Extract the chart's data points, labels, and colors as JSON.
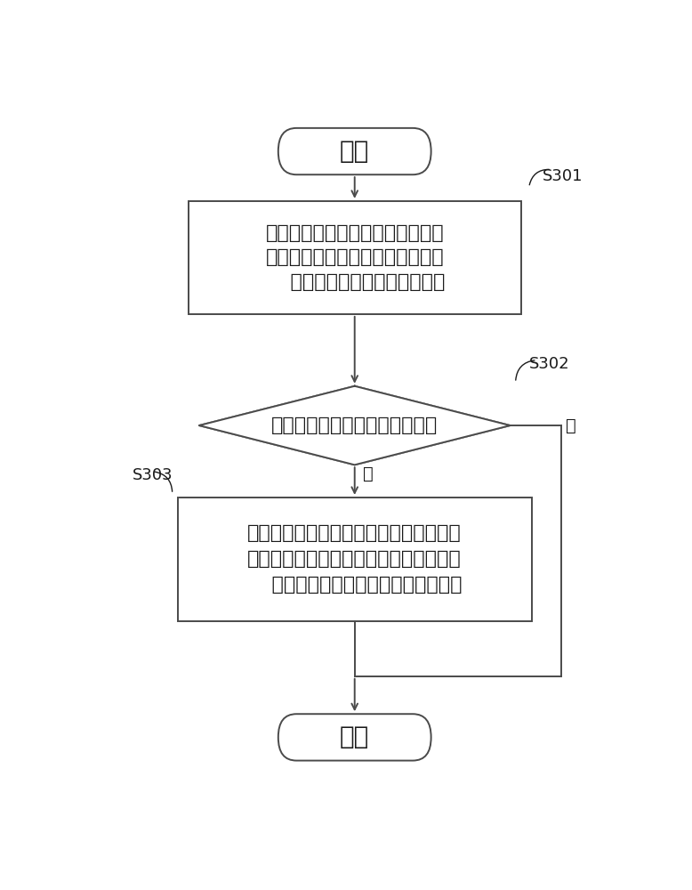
{
  "bg_color": "#ffffff",
  "line_color": "#4a4a4a",
  "text_color": "#1a1a1a",
  "start_label": "开始",
  "end_label": "结束",
  "box1_line1": "检测到冷却系统启动时，获取电池",
  "box1_line2": "包中各个电池模组的实时温度，计",
  "box1_line3": "    算电池模组的实时最大温差；",
  "diamond_text": "实时最大温差＞预设温差阈值？",
  "box2_line1": "根据所述冷却系统的工作状态和各个所述",
  "box2_line2": "电池模组的实时温度调整各个所述电池模",
  "box2_line3": "    组对应的冷却回路上的阀门的开度。",
  "label_s301": "S301",
  "label_s302": "S302",
  "label_s303": "S303",
  "yes_label": "是",
  "no_label": "否",
  "font_size_main": 16,
  "font_size_label": 13,
  "font_size_terminal": 20,
  "font_size_yesno": 14
}
